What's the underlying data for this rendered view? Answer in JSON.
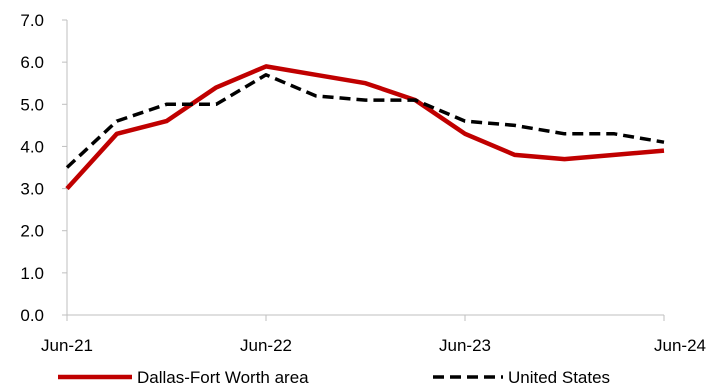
{
  "chart_data": {
    "type": "line",
    "x": [
      "Jun-21",
      "Sep-21",
      "Dec-21",
      "Mar-22",
      "Jun-22",
      "Sep-22",
      "Dec-22",
      "Mar-23",
      "Jun-23",
      "Sep-23",
      "Dec-23",
      "Mar-24",
      "Jun-24"
    ],
    "x_tick_labels": [
      "Jun-21",
      "Jun-22",
      "Jun-23",
      "Jun-24"
    ],
    "y_tick_labels": [
      "0.0",
      "1.0",
      "2.0",
      "3.0",
      "4.0",
      "5.0",
      "6.0",
      "7.0"
    ],
    "ylim": [
      0,
      7
    ],
    "grid": false,
    "legend_position": "bottom",
    "series": [
      {
        "name": "Dallas-Fort Worth area",
        "color": "#c00000",
        "style": "solid",
        "values": [
          3.0,
          4.3,
          4.6,
          5.4,
          5.9,
          5.7,
          5.5,
          5.1,
          4.3,
          3.8,
          3.7,
          3.8,
          3.9
        ]
      },
      {
        "name": "United States",
        "color": "#000000",
        "style": "dashed",
        "values": [
          3.5,
          4.6,
          5.0,
          5.0,
          5.7,
          5.2,
          5.1,
          5.1,
          4.6,
          4.5,
          4.3,
          4.3,
          4.1
        ]
      }
    ]
  }
}
